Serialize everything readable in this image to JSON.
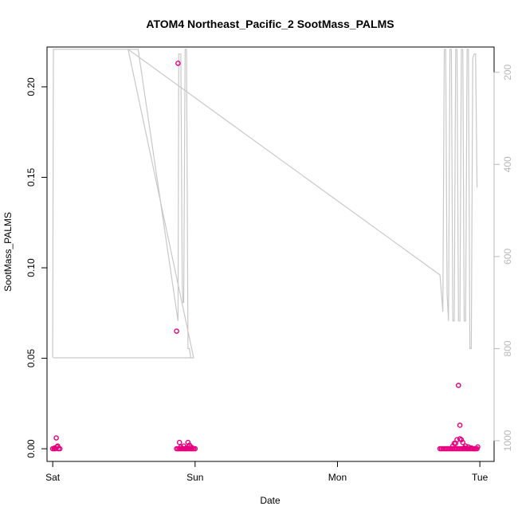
{
  "chart_data": {
    "type": "scatter",
    "title": "ATOM4 Northeast_Pacific_2 SootMass_PALMS",
    "xlabel": "Date",
    "ylabel": "SootMass_PALMS",
    "x_ticks": [
      "Sat",
      "Sun",
      "Mon",
      "Tue"
    ],
    "y_ticks": [
      "0.00",
      "0.05",
      "0.10",
      "0.15",
      "0.20"
    ],
    "y2_ticks": [
      "200",
      "400",
      "600",
      "800",
      "1000"
    ],
    "xlim": [
      -0.04,
      3.1
    ],
    "ylim": [
      -0.007,
      0.222
    ],
    "y2lim": [
      1045,
      145
    ],
    "y2_reversed": true,
    "grid": false,
    "point_color": "#e6007e",
    "line_color": "#c8c8c8",
    "series": [
      {
        "values": [
          [
            0.0,
            0.0
          ],
          [
            0.01,
            0.0
          ],
          [
            0.02,
            0.0
          ],
          [
            0.03,
            0.001
          ],
          [
            0.04,
            0.0
          ],
          [
            0.05,
            0.0
          ],
          [
            0.025,
            0.006
          ],
          [
            0.035,
            0.0015
          ],
          [
            0.015,
            0.0005
          ],
          [
            0.87,
            0.065
          ],
          [
            0.88,
            0.213
          ],
          [
            0.87,
            0.0
          ],
          [
            0.88,
            0.0
          ],
          [
            0.89,
            0.0
          ],
          [
            0.9,
            0.0
          ],
          [
            0.91,
            0.0
          ],
          [
            0.92,
            0.0
          ],
          [
            0.93,
            0.0
          ],
          [
            0.94,
            0.0
          ],
          [
            0.95,
            0.0
          ],
          [
            0.96,
            0.0
          ],
          [
            0.97,
            0.0
          ],
          [
            0.98,
            0.0
          ],
          [
            0.99,
            0.0
          ],
          [
            1.0,
            0.0
          ],
          [
            0.89,
            0.0035
          ],
          [
            0.9,
            0.001
          ],
          [
            0.92,
            0.0015
          ],
          [
            0.94,
            0.0005
          ],
          [
            0.95,
            0.0035
          ],
          [
            0.96,
            0.002
          ],
          [
            0.97,
            0.001
          ],
          [
            0.98,
            0.0005
          ],
          [
            0.93,
            0.0
          ],
          [
            2.72,
            0.0
          ],
          [
            2.74,
            0.0
          ],
          [
            2.76,
            0.0
          ],
          [
            2.78,
            0.0
          ],
          [
            2.8,
            0.0
          ],
          [
            2.82,
            0.0
          ],
          [
            2.84,
            0.0
          ],
          [
            2.86,
            0.0
          ],
          [
            2.88,
            0.0
          ],
          [
            2.9,
            0.0
          ],
          [
            2.92,
            0.0
          ],
          [
            2.94,
            0.0
          ],
          [
            2.96,
            0.0
          ],
          [
            2.98,
            0.0
          ],
          [
            2.73,
            0.0
          ],
          [
            2.75,
            0.0
          ],
          [
            2.77,
            0.0
          ],
          [
            2.79,
            0.0
          ],
          [
            2.81,
            0.0
          ],
          [
            2.83,
            0.0
          ],
          [
            2.85,
            0.0
          ],
          [
            2.87,
            0.0
          ],
          [
            2.89,
            0.0
          ],
          [
            2.91,
            0.0
          ],
          [
            2.93,
            0.0
          ],
          [
            2.95,
            0.0
          ],
          [
            2.97,
            0.0
          ],
          [
            2.81,
            0.0015
          ],
          [
            2.82,
            0.003
          ],
          [
            2.83,
            0.003
          ],
          [
            2.84,
            0.005
          ],
          [
            2.86,
            0.0055
          ],
          [
            2.85,
            0.035
          ],
          [
            2.86,
            0.013
          ],
          [
            2.87,
            0.005
          ],
          [
            2.88,
            0.0035
          ],
          [
            2.89,
            0.0005
          ],
          [
            2.9,
            0.0015
          ],
          [
            2.92,
            0.001
          ],
          [
            2.94,
            0.0005
          ],
          [
            2.96,
            0.0
          ],
          [
            2.985,
            0.001
          ]
        ]
      },
      {
        "axis": "y2",
        "values": [
          [
            0.0,
            820
          ],
          [
            0.005,
            150
          ],
          [
            0.6,
            150
          ],
          [
            0.88,
            740
          ],
          [
            0.885,
            160
          ],
          [
            0.9,
            160
          ],
          [
            0.91,
            660
          ],
          [
            0.915,
            700
          ],
          [
            0.92,
            700
          ],
          [
            0.93,
            150
          ],
          [
            0.94,
            150
          ],
          [
            0.95,
            800
          ],
          [
            0.96,
            800
          ],
          [
            0.97,
            820
          ],
          [
            0.99,
            820
          ],
          [
            0.005,
            820
          ],
          [
            0.99,
            820
          ],
          [
            0.53,
            150
          ],
          [
            2.72,
            640
          ],
          [
            2.73,
            680
          ],
          [
            2.74,
            720
          ],
          [
            2.75,
            150
          ],
          [
            2.76,
            150
          ],
          [
            2.77,
            680
          ],
          [
            2.78,
            740
          ],
          [
            2.79,
            150
          ],
          [
            2.8,
            150
          ],
          [
            2.81,
            740
          ],
          [
            2.82,
            740
          ],
          [
            2.83,
            150
          ],
          [
            2.84,
            150
          ],
          [
            2.85,
            740
          ],
          [
            2.86,
            740
          ],
          [
            2.87,
            150
          ],
          [
            2.88,
            150
          ],
          [
            2.89,
            740
          ],
          [
            2.9,
            740
          ],
          [
            2.91,
            150
          ],
          [
            2.92,
            150
          ],
          [
            2.93,
            800
          ],
          [
            2.94,
            800
          ],
          [
            2.95,
            170
          ],
          [
            2.96,
            160
          ],
          [
            2.97,
            160
          ],
          [
            2.98,
            450
          ]
        ]
      }
    ]
  }
}
